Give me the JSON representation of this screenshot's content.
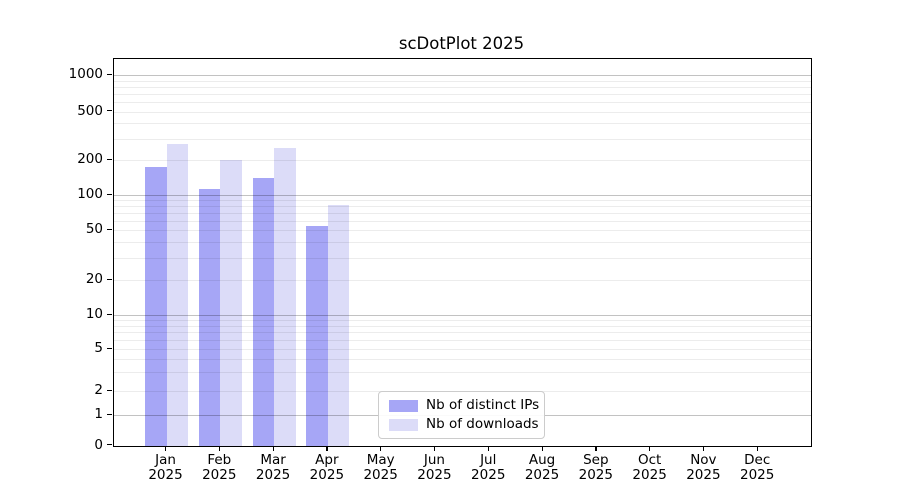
{
  "title": "scDotPlot 2025",
  "chart_data": {
    "type": "bar",
    "title": "scDotPlot 2025",
    "categories": [
      "Jan",
      "Feb",
      "Mar",
      "Apr",
      "May",
      "Jun",
      "Jul",
      "Aug",
      "Sep",
      "Oct",
      "Nov",
      "Dec"
    ],
    "year_label": "2025",
    "series": [
      {
        "name": "Nb of distinct IPs",
        "color": "#a6a6f6",
        "values": [
          175,
          112,
          140,
          54,
          0,
          0,
          0,
          0,
          0,
          0,
          0,
          0
        ]
      },
      {
        "name": "Nb of downloads",
        "color": "#dcdcf8",
        "values": [
          270,
          200,
          250,
          82,
          0,
          0,
          0,
          0,
          0,
          0,
          0,
          0
        ]
      }
    ],
    "yscale": "symlog",
    "yticks": [
      0,
      1,
      2,
      5,
      10,
      20,
      50,
      100,
      200,
      500,
      1000
    ],
    "ylim": [
      0,
      1300
    ],
    "xlabel": "",
    "ylabel": "",
    "grid": "horizontal-major-and-minor",
    "grid_above_bars": true,
    "legend_position": "lower center"
  },
  "colors": {
    "series_dark": "#a6a6f6",
    "series_light": "#dcdcf8",
    "spine": "#000000",
    "grid_major": "#c2c2c2",
    "grid_minor": "#ebebeb",
    "background": "#ffffff"
  }
}
